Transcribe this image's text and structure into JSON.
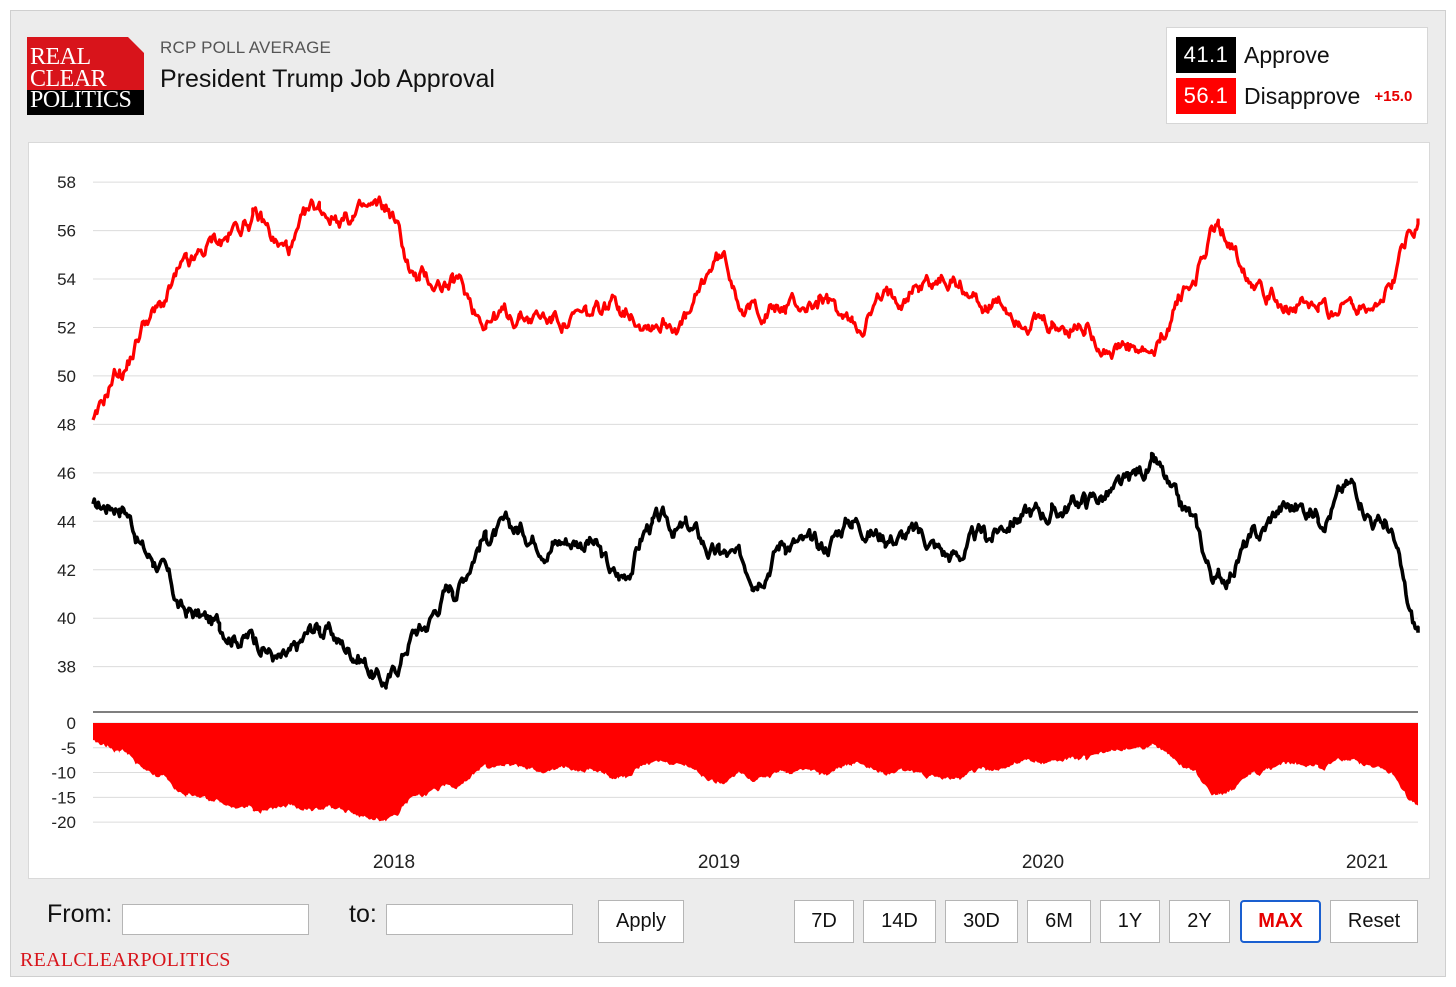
{
  "header": {
    "logo_lines": [
      "REAL",
      "CLEAR",
      "POLITICS"
    ],
    "subtitle": "RCP POLL AVERAGE",
    "title": "President Trump Job Approval"
  },
  "legend": {
    "approve_value": "41.1",
    "approve_label": "Approve",
    "disapprove_value": "56.1",
    "disapprove_label": "Disapprove",
    "spread": "+15.0",
    "approve_color": "#000000",
    "disapprove_color": "#ff0000"
  },
  "controls": {
    "from_label": "From:",
    "to_label": "to:",
    "from_value": "",
    "to_value": "",
    "apply_label": "Apply",
    "ranges": [
      "7D",
      "14D",
      "30D",
      "6M",
      "1Y",
      "2Y",
      "MAX"
    ],
    "active_range": "MAX",
    "reset_label": "Reset"
  },
  "footer": "REALCLEARPOLITICS",
  "chart_data": [
    {
      "type": "line",
      "x_ticks": [
        "2018",
        "2019",
        "2020",
        "2021"
      ],
      "yticks": [
        38,
        40,
        42,
        44,
        46,
        48,
        50,
        52,
        54,
        56,
        58
      ],
      "ylim": [
        36.5,
        58.5
      ],
      "grid": true,
      "x": [
        2017.07,
        2017.15,
        2017.25,
        2017.35,
        2017.45,
        2017.55,
        2017.65,
        2017.75,
        2017.85,
        2017.95,
        2018.05,
        2018.15,
        2018.25,
        2018.35,
        2018.45,
        2018.55,
        2018.65,
        2018.75,
        2018.85,
        2018.95,
        2019.05,
        2019.15,
        2019.25,
        2019.35,
        2019.45,
        2019.55,
        2019.65,
        2019.75,
        2019.85,
        2019.95,
        2020.05,
        2020.15,
        2020.25,
        2020.35,
        2020.45,
        2020.55,
        2020.65,
        2020.75,
        2020.85,
        2020.95,
        2021.05
      ],
      "series": [
        {
          "name": "Approve",
          "color": "#000000",
          "values": [
            44.5,
            44.8,
            42.5,
            40.2,
            39.7,
            39.3,
            38.2,
            39.6,
            38.7,
            37.4,
            39.6,
            41.3,
            43.5,
            43.6,
            43.3,
            43.3,
            41.6,
            43.9,
            43.6,
            42.6,
            42.0,
            43.3,
            42.8,
            44.1,
            43.5,
            43.4,
            42.6,
            43.3,
            44.3,
            44.4,
            44.9,
            45.2,
            46.2,
            44.2,
            41.6,
            43.1,
            44.6,
            44.5,
            45.4,
            43.9,
            39.4
          ]
        },
        {
          "name": "Disapprove",
          "color": "#ff0000",
          "values": [
            48.0,
            50.2,
            52.6,
            54.3,
            55.6,
            56.5,
            55.2,
            56.8,
            56.6,
            56.8,
            53.9,
            53.8,
            52.5,
            52.5,
            52.4,
            52.3,
            53.0,
            52.4,
            52.3,
            54.8,
            52.8,
            52.8,
            53.0,
            52.1,
            53.1,
            53.9,
            54.0,
            53.0,
            52.6,
            51.8,
            52.0,
            51.1,
            50.7,
            53.5,
            56.1,
            54.4,
            53.1,
            52.6,
            53.0,
            53.4,
            56.5
          ]
        }
      ]
    },
    {
      "type": "area",
      "yticks": [
        0,
        -5,
        -10,
        -15,
        -20
      ],
      "ylim": [
        -22,
        0
      ],
      "grid": true,
      "series": [
        {
          "name": "",
          "color": "#ff0000",
          "values": [
            -3.5,
            -5.4,
            -10.1,
            -14.1,
            -15.9,
            -17.2,
            -17.0,
            -17.2,
            -17.9,
            -19.4,
            -14.3,
            -12.5,
            -9.0,
            -8.9,
            -9.1,
            -9.0,
            -11.4,
            -8.5,
            -8.7,
            -12.2,
            -10.8,
            -9.5,
            -10.2,
            -8.0,
            -9.6,
            -10.5,
            -11.4,
            -9.7,
            -8.3,
            -7.4,
            -7.1,
            -5.9,
            -4.5,
            -9.3,
            -14.5,
            -11.3,
            -8.5,
            -8.1,
            -7.6,
            -9.5,
            -17.1
          ]
        }
      ]
    }
  ]
}
